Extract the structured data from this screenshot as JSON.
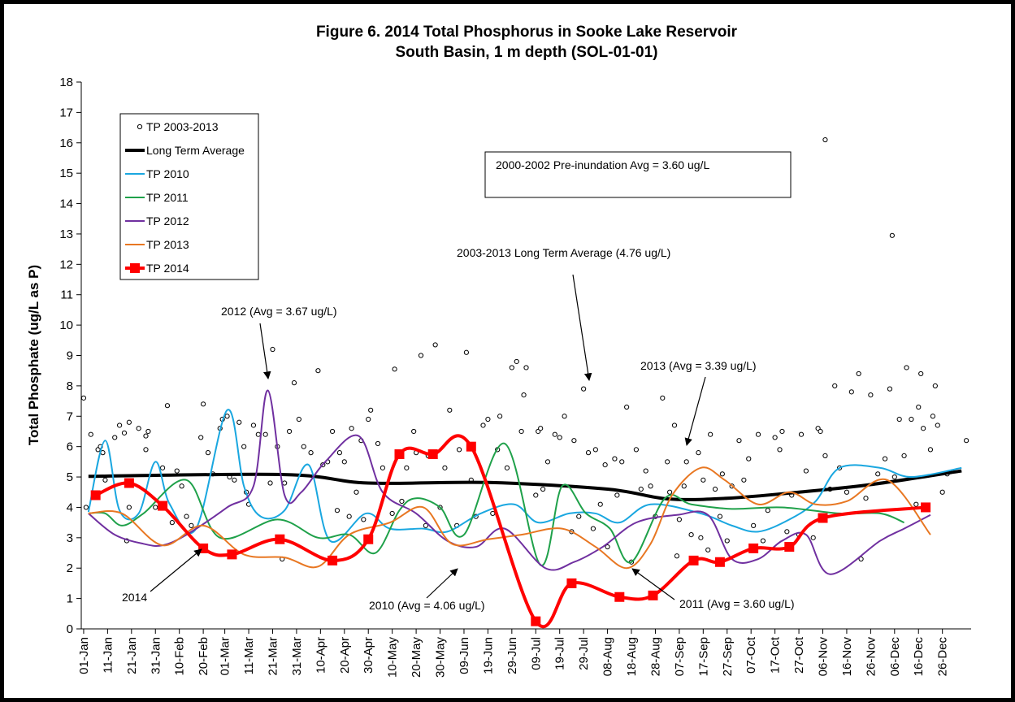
{
  "chart_data": {
    "type": "line",
    "title": "Figure 6. 2014 Total Phosphorus in Sooke Lake Reservoir",
    "subtitle": "South Basin, 1 m depth (SOL-01-01)",
    "y_label": "Total Phosphate (ug/L as P)",
    "xlim": [
      0,
      372
    ],
    "xticks": [
      {
        "value": 1,
        "label": "01-Jan"
      },
      {
        "value": 11,
        "label": "11-Jan"
      },
      {
        "value": 21,
        "label": "21-Jan"
      },
      {
        "value": 31,
        "label": "31-Jan"
      },
      {
        "value": 41,
        "label": "10-Feb"
      },
      {
        "value": 51,
        "label": "20-Feb"
      },
      {
        "value": 60,
        "label": "01-Mar"
      },
      {
        "value": 70,
        "label": "11-Mar"
      },
      {
        "value": 80,
        "label": "21-Mar"
      },
      {
        "value": 90,
        "label": "31-Mar"
      },
      {
        "value": 100,
        "label": "10-Apr"
      },
      {
        "value": 110,
        "label": "20-Apr"
      },
      {
        "value": 120,
        "label": "30-Apr"
      },
      {
        "value": 130,
        "label": "10-May"
      },
      {
        "value": 140,
        "label": "20-May"
      },
      {
        "value": 150,
        "label": "30-May"
      },
      {
        "value": 160,
        "label": "09-Jun"
      },
      {
        "value": 170,
        "label": "19-Jun"
      },
      {
        "value": 180,
        "label": "29-Jun"
      },
      {
        "value": 190,
        "label": "09-Jul"
      },
      {
        "value": 200,
        "label": "19-Jul"
      },
      {
        "value": 210,
        "label": "29-Jul"
      },
      {
        "value": 220,
        "label": "08-Aug"
      },
      {
        "value": 230,
        "label": "18-Aug"
      },
      {
        "value": 240,
        "label": "28-Aug"
      },
      {
        "value": 250,
        "label": "07-Sep"
      },
      {
        "value": 260,
        "label": "17-Sep"
      },
      {
        "value": 270,
        "label": "27-Sep"
      },
      {
        "value": 280,
        "label": "07-Oct"
      },
      {
        "value": 290,
        "label": "17-Oct"
      },
      {
        "value": 300,
        "label": "27-Oct"
      },
      {
        "value": 310,
        "label": "06-Nov"
      },
      {
        "value": 320,
        "label": "16-Nov"
      },
      {
        "value": 330,
        "label": "26-Nov"
      },
      {
        "value": 340,
        "label": "06-Dec"
      },
      {
        "value": 350,
        "label": "16-Dec"
      },
      {
        "value": 360,
        "label": "26-Dec"
      }
    ],
    "ylim": [
      0,
      18
    ],
    "yticks": [
      0,
      1,
      2,
      3,
      4,
      5,
      6,
      7,
      8,
      9,
      10,
      11,
      12,
      13,
      14,
      15,
      16,
      17,
      18
    ],
    "grid": false,
    "legend": "upper left",
    "series": [
      {
        "name": "TP 2003-2013",
        "type": "scatter",
        "marker": "circle",
        "color": "#000000",
        "x": [
          1,
          2,
          4,
          7,
          8,
          9,
          10,
          14,
          16,
          18,
          19,
          20,
          20,
          24,
          27,
          27,
          28,
          31,
          34,
          36,
          38,
          40,
          42,
          44,
          46,
          50,
          51,
          53,
          55,
          58,
          59,
          61,
          62,
          64,
          66,
          68,
          69,
          70,
          72,
          74,
          77,
          79,
          80,
          82,
          84,
          85,
          87,
          89,
          91,
          93,
          96,
          99,
          101,
          103,
          105,
          107,
          108,
          110,
          112,
          113,
          115,
          117,
          118,
          120,
          121,
          124,
          126,
          130,
          131,
          134,
          136,
          139,
          140,
          142,
          144,
          145,
          148,
          150,
          152,
          154,
          157,
          158,
          161,
          163,
          165,
          168,
          170,
          172,
          174,
          175,
          178,
          180,
          182,
          184,
          185,
          186,
          190,
          191,
          192,
          193,
          195,
          198,
          200,
          202,
          205,
          206,
          208,
          210,
          212,
          214,
          215,
          217,
          219,
          220,
          223,
          224,
          226,
          228,
          230,
          232,
          234,
          236,
          238,
          240,
          243,
          245,
          246,
          248,
          249,
          250,
          252,
          253,
          255,
          258,
          259,
          260,
          262,
          263,
          265,
          267,
          268,
          270,
          272,
          275,
          277,
          279,
          281,
          283,
          285,
          287,
          290,
          292,
          293,
          295,
          297,
          300,
          301,
          303,
          306,
          308,
          309,
          311,
          311,
          313,
          315,
          317,
          320,
          322,
          325,
          326,
          328,
          330,
          333,
          336,
          338,
          339,
          340,
          342,
          344,
          345,
          347,
          349,
          350,
          351,
          352,
          355,
          356,
          357,
          358,
          360,
          362,
          370
        ],
        "values": [
          7.6,
          4.0,
          6.4,
          5.9,
          6.0,
          5.8,
          4.9,
          6.3,
          6.7,
          6.45,
          2.9,
          6.8,
          4.0,
          6.6,
          6.35,
          5.9,
          6.5,
          4.0,
          5.3,
          7.35,
          3.5,
          5.2,
          4.7,
          3.7,
          3.4,
          6.3,
          7.4,
          5.8,
          5.1,
          6.6,
          6.9,
          7.0,
          5.0,
          4.9,
          6.8,
          6.0,
          4.5,
          4.1,
          6.7,
          6.4,
          6.4,
          4.8,
          9.2,
          6.0,
          2.3,
          4.8,
          6.5,
          8.1,
          6.9,
          6.0,
          5.8,
          8.5,
          5.4,
          5.5,
          6.5,
          3.9,
          5.8,
          5.5,
          3.7,
          6.6,
          4.5,
          6.2,
          3.6,
          6.9,
          7.2,
          6.1,
          5.3,
          3.8,
          8.55,
          4.2,
          5.3,
          6.5,
          5.8,
          9.0,
          3.4,
          5.7,
          9.35,
          4.0,
          5.3,
          7.2,
          3.4,
          5.9,
          9.1,
          4.9,
          3.7,
          6.7,
          6.9,
          3.8,
          5.9,
          7.0,
          5.3,
          8.6,
          8.8,
          6.5,
          7.7,
          8.6,
          4.4,
          6.5,
          6.6,
          4.6,
          5.5,
          6.4,
          6.3,
          7.0,
          3.2,
          6.2,
          3.7,
          7.9,
          5.8,
          3.3,
          5.9,
          4.1,
          5.4,
          2.7,
          5.6,
          4.4,
          5.5,
          7.3,
          2.2,
          5.9,
          4.6,
          5.2,
          4.7,
          3.7,
          7.6,
          5.5,
          4.5,
          6.7,
          2.4,
          3.6,
          4.7,
          5.5,
          3.1,
          5.8,
          3.0,
          4.9,
          2.6,
          6.4,
          4.6,
          3.7,
          5.1,
          2.9,
          4.7,
          6.2,
          4.9,
          5.6,
          3.4,
          6.4,
          2.9,
          3.9,
          6.3,
          5.9,
          6.5,
          3.2,
          4.4,
          3.1,
          6.4,
          5.2,
          3.0,
          6.6,
          6.5,
          5.7,
          16.1,
          4.6,
          8.0,
          5.3,
          4.5,
          7.8,
          8.4,
          2.3,
          4.3,
          7.7,
          5.1,
          5.6,
          7.9,
          12.95,
          5.0,
          6.9,
          5.7,
          8.6,
          6.9,
          4.1,
          7.3,
          8.4,
          6.6,
          5.9,
          7.0,
          8.0,
          6.7,
          4.5,
          5.1,
          6.2
        ]
      },
      {
        "name": "Long Term Average",
        "type": "line",
        "color": "#000000",
        "width": 4,
        "x": [
          3,
          85,
          120,
          170,
          220,
          245,
          270,
          300,
          330,
          368
        ],
        "values": [
          5.02,
          5.08,
          4.8,
          4.82,
          4.6,
          4.28,
          4.3,
          4.5,
          4.75,
          5.2
        ]
      },
      {
        "name": "TP 2010",
        "type": "line",
        "color": "#1aa7e0",
        "width": 2,
        "x": [
          3,
          10,
          16,
          24,
          31,
          37,
          48,
          61,
          68,
          75,
          85,
          95,
          104,
          119,
          129,
          143,
          153,
          167,
          181,
          191,
          204,
          215,
          225,
          238,
          259,
          272,
          283,
          296,
          307,
          317,
          334,
          347,
          368
        ],
        "values": [
          3.85,
          6.2,
          3.9,
          3.8,
          5.5,
          4.1,
          3.3,
          7.2,
          4.7,
          3.7,
          3.9,
          5.4,
          2.9,
          3.8,
          3.3,
          3.3,
          3.2,
          3.8,
          4.1,
          3.5,
          3.8,
          3.8,
          3.5,
          4.1,
          3.8,
          3.4,
          3.2,
          3.6,
          4.2,
          5.3,
          5.3,
          5.0,
          5.3
        ]
      },
      {
        "name": "TP 2011",
        "type": "line",
        "color": "#1fa14a",
        "width": 2,
        "x": [
          3,
          10,
          17,
          26,
          44,
          58,
          82,
          99,
          112,
          123,
          133,
          140,
          150,
          160,
          177,
          192,
          201,
          211,
          221,
          230,
          244,
          255,
          272,
          293,
          317,
          334,
          344
        ],
        "values": [
          3.8,
          3.8,
          3.4,
          3.8,
          4.9,
          3.0,
          3.6,
          3.0,
          3.1,
          2.5,
          3.9,
          4.3,
          4.0,
          3.1,
          6.1,
          2.1,
          4.7,
          3.8,
          3.3,
          2.2,
          4.3,
          4.1,
          3.95,
          4.0,
          3.8,
          3.8,
          3.5
        ]
      },
      {
        "name": "TP 2012",
        "type": "line",
        "color": "#7030a0",
        "width": 2,
        "x": [
          3,
          14,
          26,
          34,
          44,
          61,
          72,
          78,
          85,
          92,
          102,
          116,
          126,
          140,
          153,
          165,
          177,
          194,
          206,
          218,
          232,
          249,
          262,
          272,
          283,
          293,
          303,
          313,
          334,
          344,
          355
        ],
        "values": [
          3.8,
          3.1,
          2.8,
          2.75,
          3.1,
          4.0,
          4.7,
          7.85,
          4.4,
          4.5,
          5.5,
          6.35,
          4.5,
          3.8,
          2.9,
          2.7,
          3.3,
          2.0,
          2.2,
          2.7,
          3.5,
          3.75,
          3.75,
          2.3,
          2.3,
          2.9,
          3.1,
          1.8,
          2.9,
          3.3,
          3.75
        ]
      },
      {
        "name": "TP 2013",
        "type": "line",
        "color": "#e87722",
        "width": 2,
        "x": [
          3,
          17,
          34,
          51,
          68,
          85,
          99,
          112,
          129,
          143,
          155,
          170,
          184,
          201,
          215,
          228,
          238,
          247,
          259,
          269,
          283,
          296,
          307,
          320,
          337,
          355
        ],
        "values": [
          3.8,
          3.8,
          2.75,
          3.4,
          2.45,
          2.35,
          2.05,
          3.1,
          3.5,
          4.0,
          2.8,
          2.95,
          3.1,
          3.3,
          2.7,
          2.0,
          2.8,
          4.4,
          5.3,
          4.9,
          4.1,
          4.5,
          4.1,
          4.2,
          4.9,
          3.1
        ]
      },
      {
        "name": "TP 2014",
        "type": "line",
        "marker": "square",
        "color": "#ff0000",
        "width": 4,
        "x": [
          6,
          20,
          34,
          51,
          63,
          83,
          105,
          120,
          133,
          147,
          163,
          190,
          205,
          225,
          239,
          256,
          267,
          281,
          296,
          310,
          353
        ],
        "values": [
          4.4,
          4.8,
          4.05,
          2.65,
          2.45,
          2.95,
          2.25,
          2.95,
          5.75,
          5.75,
          6.0,
          0.25,
          1.5,
          1.05,
          1.1,
          2.25,
          2.2,
          2.65,
          2.7,
          3.65,
          4.0
        ]
      }
    ],
    "annotations": [
      "2012 (Avg = 3.67 ug/L)",
      "2014",
      "2010 (Avg = 4.06 ug/L)",
      "2011 (Avg = 3.60 ug/L)",
      "2013 (Avg = 3.39 ug/L)",
      "2003-2013 Long Term Average (4.76 ug/L)",
      "2000-2002 Pre-inundation Avg = 3.60 ug/L"
    ]
  }
}
